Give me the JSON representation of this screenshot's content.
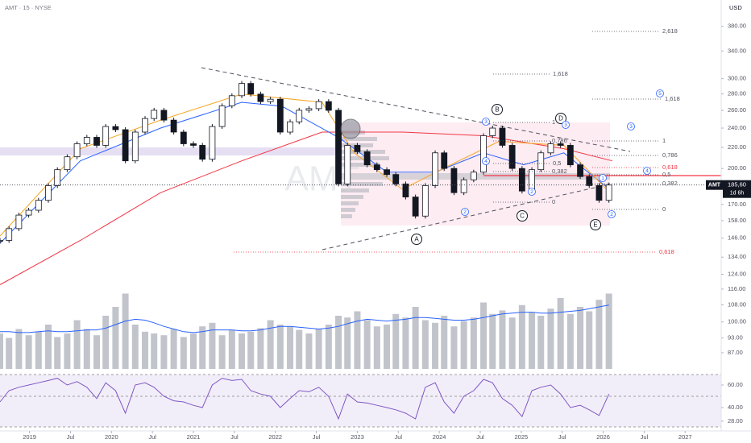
{
  "header": {
    "symbol_line": "AMT · 15 · NYSE",
    "currency": "USD"
  },
  "watermark": "AMT",
  "price_tag": {
    "symbol": "AMT",
    "price": "185,60",
    "countdown": "1d 6h"
  },
  "chart_data": [
    {
      "type": "candlestick",
      "x": [
        2018.64,
        2018.75,
        2018.87,
        2018.99,
        2019.11,
        2019.23,
        2019.34,
        2019.46,
        2019.58,
        2019.7,
        2019.82,
        2019.93,
        2020.05,
        2020.17,
        2020.29,
        2020.41,
        2020.52,
        2020.64,
        2020.76,
        2020.88,
        2021.0,
        2021.11,
        2021.23,
        2021.35,
        2021.47,
        2021.59,
        2021.7,
        2021.82,
        2021.94,
        2022.06,
        2022.18,
        2022.29,
        2022.41,
        2022.53,
        2022.65,
        2022.77,
        2022.88,
        2023.0,
        2023.12,
        2023.24,
        2023.36,
        2023.47,
        2023.59,
        2023.71,
        2023.83,
        2023.95,
        2024.06,
        2024.18,
        2024.3,
        2024.42,
        2024.54,
        2024.65,
        2024.77,
        2024.89,
        2025.01,
        2025.13,
        2025.24,
        2025.36,
        2025.48,
        2025.6,
        2025.72,
        2025.83,
        2025.95,
        2026.07
      ],
      "values": [
        144.5,
        152.4,
        162.0,
        165.6,
        173.2,
        185.1,
        198.9,
        210.8,
        223.6,
        230.2,
        222.0,
        241.7,
        238.3,
        207.0,
        235.7,
        250.6,
        260.1,
        248.8,
        235.7,
        223.6,
        222.0,
        208.5,
        241.7,
        265.4,
        277.8,
        293.6,
        279.8,
        270.5,
        273.4,
        235.7,
        246.9,
        260.1,
        262.0,
        270.5,
        260.1,
        186.5,
        222.0,
        215.7,
        203.3,
        198.9,
        194.6,
        186.5,
        175.8,
        161.3,
        185.1,
        214.6,
        200.0,
        179.3,
        190.0,
        196.7,
        231.9,
        240.0,
        222.0,
        200.0,
        180.6,
        198.9,
        214.6,
        223.6,
        222.0,
        203.3,
        192.8,
        185.1,
        173.2,
        185.6
      ],
      "color": "#131722",
      "log_scale": true,
      "xlim": [
        2018.64,
        2027.44
      ],
      "ylim": [
        80.3,
        428
      ],
      "xticks": [
        2019,
        {
          "value": 2019.5,
          "label": "Jul"
        },
        2020,
        {
          "value": 2020.5,
          "label": "Jul"
        },
        2021,
        {
          "value": 2021.5,
          "label": "Jul"
        },
        2022,
        {
          "value": 2022.5,
          "label": "Jul"
        },
        2023,
        {
          "value": 2023.5,
          "label": "Jul"
        },
        2024,
        {
          "value": 2024.5,
          "label": "Jul"
        },
        2025,
        {
          "value": 2025.5,
          "label": "Jul"
        },
        2026,
        {
          "value": 2026.5,
          "label": "Jul"
        },
        2027
      ],
      "yticks": [
        {
          "value": 380,
          "label": "380.00"
        },
        {
          "value": 340,
          "label": "340.00"
        },
        {
          "value": 300,
          "label": "300.00"
        },
        {
          "value": 280,
          "label": "280.00"
        },
        {
          "value": 260,
          "label": "260.00"
        },
        {
          "value": 240,
          "label": "240.00"
        },
        {
          "value": 220,
          "label": "220.00"
        },
        {
          "value": 200,
          "label": "200.00"
        },
        {
          "value": 170,
          "label": "170.00"
        },
        {
          "value": 158,
          "label": "158.00"
        },
        {
          "value": 146,
          "label": "146.00"
        },
        {
          "value": 134,
          "label": "134.00"
        },
        {
          "value": 124,
          "label": "124.00"
        },
        {
          "value": 116,
          "label": "116.00"
        },
        {
          "value": 108,
          "label": "108.00"
        },
        {
          "value": 100,
          "label": "100.00"
        },
        {
          "value": 93,
          "label": "93.00"
        },
        {
          "value": 87,
          "label": "87.00"
        }
      ],
      "overlays": [
        {
          "color": "#f23645",
          "x": [
            2018.64,
            2019.62,
            2020.6,
            2021.59,
            2022.57,
            2023.55,
            2024.54,
            2025.52,
            2026.11
          ],
          "values": [
            118.3,
            144.5,
            179.3,
            207.0,
            235.7,
            235.7,
            231.9,
            218.7,
            207.0
          ]
        },
        {
          "color": "#2962ff",
          "x": [
            2018.64,
            2019.62,
            2020.6,
            2021.59,
            2022.08,
            2022.77,
            2023.36,
            2023.95,
            2024.54,
            2025.03,
            2025.52,
            2026.08
          ],
          "values": [
            142.6,
            207.0,
            240.0,
            269.7,
            264.9,
            230.2,
            196.7,
            196.7,
            214.6,
            203.3,
            214.6,
            182.0
          ]
        },
        {
          "color": "#f5a623",
          "x": [
            2018.64,
            2019.62,
            2020.6,
            2021.59,
            2022.57,
            2022.96,
            2023.55,
            2024.14,
            2024.73,
            2025.52,
            2026.08
          ],
          "values": [
            147.4,
            218.7,
            248.8,
            279.8,
            269.7,
            214.6,
            182.0,
            203.3,
            226.0,
            222.0,
            179.3
          ]
        }
      ],
      "annotations": [
        {
          "text": "2,618",
          "color": "#50535e"
        },
        {
          "text": "1,618",
          "color": "#50535e"
        },
        {
          "text": "1,618",
          "color": "#50535e"
        },
        {
          "text": "1",
          "color": "#50535e"
        },
        {
          "text": "0,786",
          "color": "#50535e"
        },
        {
          "text": "0,618",
          "color": "#f23645"
        },
        {
          "text": "0,5",
          "color": "#50535e"
        },
        {
          "text": "0,382",
          "color": "#50535e"
        },
        {
          "text": "0",
          "color": "#50535e"
        },
        {
          "text": "0,618",
          "color": "#f23645"
        },
        {
          "text": "1",
          "color": "#50535e"
        },
        {
          "text": "0,786",
          "color": "#50535e"
        },
        {
          "text": "0,5",
          "color": "#50535e"
        },
        {
          "text": "0,382",
          "color": "#50535e"
        },
        {
          "text": "0",
          "color": "#50535e"
        }
      ],
      "wave_labels": [
        "A",
        "B",
        "C",
        "D",
        "E"
      ],
      "subwave_labels": [
        "3",
        "2",
        "4",
        "2",
        "3",
        "5",
        "3",
        "4",
        "1",
        "2"
      ]
    },
    {
      "type": "bar",
      "color": "#b2b5be",
      "ylim": [
        0,
        100
      ],
      "values": [
        40,
        35,
        45,
        38,
        42,
        50,
        36,
        40,
        55,
        45,
        38,
        60,
        70,
        85,
        50,
        42,
        40,
        38,
        45,
        36,
        40,
        48,
        52,
        38,
        44,
        40,
        42,
        46,
        55,
        50,
        48,
        44,
        40,
        45,
        50,
        60,
        58,
        65,
        55,
        48,
        50,
        62,
        58,
        70,
        55,
        52,
        60,
        48,
        54,
        58,
        75,
        62,
        66,
        58,
        72,
        64,
        60,
        68,
        80,
        62,
        70,
        65,
        78,
        85
      ],
      "ma": {
        "color": "#2962ff",
        "values": [
          42,
          42,
          41,
          41,
          42,
          43,
          42,
          42,
          43,
          44,
          44,
          46,
          50,
          54,
          56,
          55,
          52,
          48,
          45,
          42,
          41,
          42,
          44,
          44,
          44,
          43,
          43,
          44,
          46,
          48,
          48,
          47,
          46,
          45,
          46,
          48,
          51,
          54,
          56,
          55,
          54,
          55,
          56,
          58,
          58,
          57,
          56,
          55,
          55,
          56,
          58,
          60,
          62,
          63,
          64,
          64,
          63,
          63,
          64,
          65,
          66,
          68,
          70,
          72
        ]
      }
    },
    {
      "type": "line",
      "color": "#7e57c2",
      "ylim": [
        19.3,
        69.3
      ],
      "yticks": [
        {
          "value": 60,
          "label": "60.00"
        },
        {
          "value": 40,
          "label": "40.00"
        },
        {
          "value": 28,
          "label": "28.00"
        }
      ],
      "values": [
        45,
        55,
        58,
        60,
        62,
        64,
        66,
        60,
        63,
        58,
        48,
        62,
        55,
        35,
        60,
        62,
        58,
        50,
        46,
        45,
        42,
        40,
        60,
        66,
        64,
        65,
        55,
        52,
        50,
        40,
        48,
        55,
        54,
        58,
        50,
        30,
        52,
        45,
        44,
        42,
        40,
        38,
        35,
        30,
        58,
        62,
        45,
        35,
        50,
        55,
        65,
        62,
        48,
        42,
        32,
        55,
        58,
        60,
        52,
        40,
        42,
        38,
        33,
        52
      ]
    }
  ]
}
